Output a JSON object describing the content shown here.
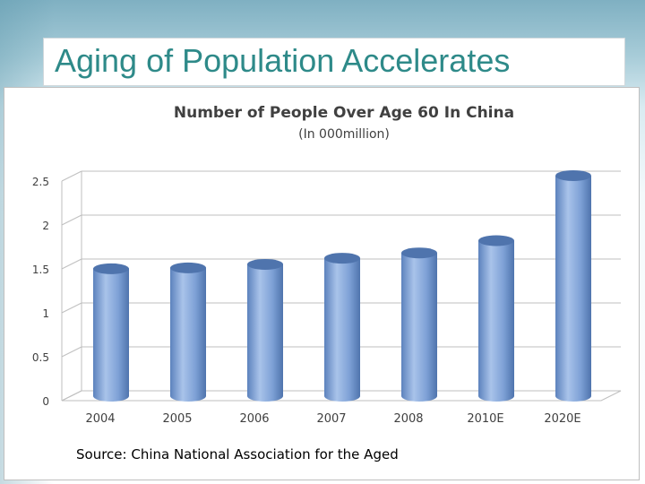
{
  "slide": {
    "title": "Aging of Population Accelerates",
    "source": "Source: China National Association for the Aged"
  },
  "chart_data": {
    "type": "bar",
    "title": "Number of People Over Age 60 In China",
    "subtitle": "(In 000million)",
    "xlabel": "",
    "ylabel": "",
    "categories": [
      "2004",
      "2005",
      "2006",
      "2007",
      "2008",
      "2010E",
      "2020E"
    ],
    "values": [
      1.43,
      1.44,
      1.48,
      1.55,
      1.61,
      1.75,
      2.49
    ],
    "ylim": [
      0,
      2.5
    ],
    "yticks": [
      0,
      0.5,
      1,
      1.5,
      2,
      2.5
    ],
    "ytick_labels": [
      "0",
      "0.5",
      "1",
      "1.5",
      "2",
      "2.5"
    ],
    "grid": true,
    "legend": "none",
    "bar_color": "#7fa3d6"
  }
}
